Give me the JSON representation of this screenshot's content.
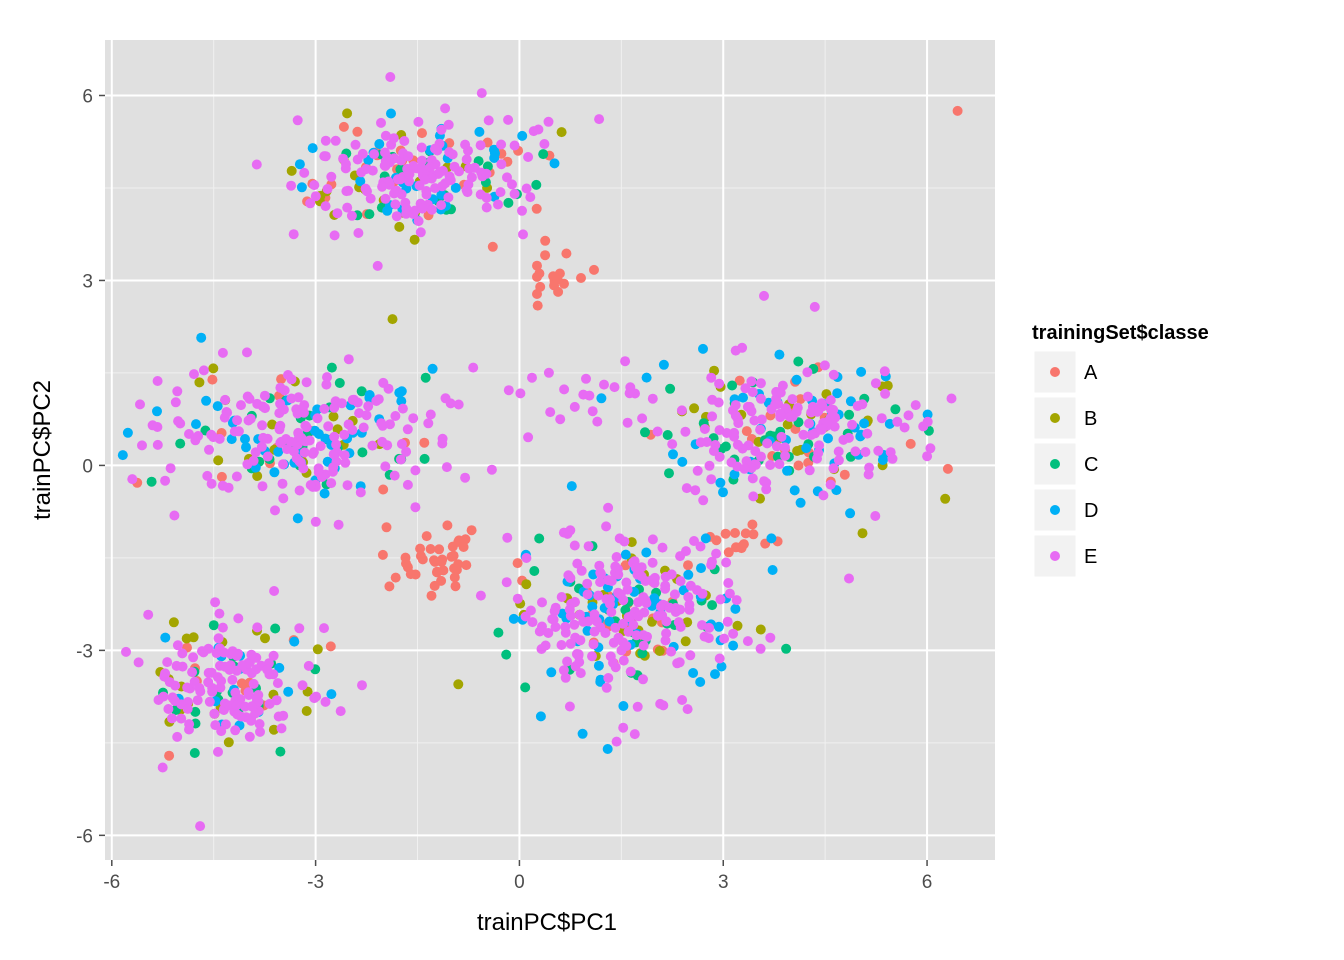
{
  "chart_data": {
    "type": "scatter",
    "xlabel": "trainPC$PC1",
    "ylabel": "trainPC$PC2",
    "xlim": [
      -6.1,
      7.0
    ],
    "ylim": [
      -6.4,
      6.9
    ],
    "x_ticks": [
      -6,
      -3,
      0,
      3,
      6
    ],
    "y_ticks": [
      -6,
      -3,
      3,
      6
    ],
    "x_tick_labels": [
      "-6",
      "-3",
      "0",
      "3",
      "6"
    ],
    "y_tick_labels": [
      "-6",
      "-3",
      "3",
      "6"
    ],
    "y_zero_label": "0",
    "grid": true,
    "legend_title": "trainingSet$classe",
    "legend_position": "right",
    "background_color": "#e0e0e0",
    "series": [
      {
        "name": "A",
        "color": "#f8766d"
      },
      {
        "name": "B",
        "color": "#a3a500"
      },
      {
        "name": "C",
        "color": "#00bf7d"
      },
      {
        "name": "D",
        "color": "#00b0f6"
      },
      {
        "name": "E",
        "color": "#e76bf3"
      }
    ],
    "clusters": [
      {
        "center": [
          -1.5,
          4.7
        ],
        "spread": [
          0.95,
          0.45
        ],
        "n": 260,
        "weights": [
          0.12,
          0.08,
          0.08,
          0.12,
          0.6
        ]
      },
      {
        "center": [
          -3.2,
          0.5
        ],
        "spread": [
          1.0,
          0.55
        ],
        "n": 280,
        "weights": [
          0.04,
          0.08,
          0.08,
          0.15,
          0.65
        ]
      },
      {
        "center": [
          -4.2,
          -3.6
        ],
        "spread": [
          0.6,
          0.55
        ],
        "n": 200,
        "weights": [
          0.06,
          0.1,
          0.1,
          0.08,
          0.66
        ]
      },
      {
        "center": [
          1.6,
          -2.4
        ],
        "spread": [
          0.85,
          0.7
        ],
        "n": 340,
        "weights": [
          0.06,
          0.1,
          0.06,
          0.2,
          0.58
        ]
      },
      {
        "center": [
          4.0,
          0.6
        ],
        "spread": [
          0.95,
          0.55
        ],
        "n": 280,
        "weights": [
          0.07,
          0.1,
          0.1,
          0.2,
          0.53
        ]
      },
      {
        "center": [
          -1.3,
          -1.5
        ],
        "spread": [
          0.35,
          0.3
        ],
        "n": 40,
        "weights": [
          1,
          0,
          0,
          0,
          0
        ]
      },
      {
        "center": [
          0.5,
          3.0
        ],
        "spread": [
          0.25,
          0.25
        ],
        "n": 18,
        "weights": [
          1,
          0,
          0,
          0,
          0
        ]
      },
      {
        "center": [
          3.4,
          -1.2
        ],
        "spread": [
          0.25,
          0.15
        ],
        "n": 14,
        "weights": [
          1,
          0,
          0,
          0,
          0
        ]
      },
      {
        "center": [
          1.0,
          1.1
        ],
        "spread": [
          0.5,
          0.35
        ],
        "n": 20,
        "weights": [
          0,
          0,
          0,
          0,
          1
        ]
      }
    ],
    "outliers": [
      {
        "x": 6.45,
        "y": 5.75,
        "series": "A"
      },
      {
        "x": -0.9,
        "y": -3.55,
        "series": "B"
      },
      {
        "x": 0.35,
        "y": 5.05,
        "series": "C"
      },
      {
        "x": -4.7,
        "y": -5.85,
        "series": "E"
      },
      {
        "x": -5.25,
        "y": -4.9,
        "series": "E"
      },
      {
        "x": -5.4,
        "y": 0.65,
        "series": "E"
      },
      {
        "x": -1.9,
        "y": 6.3,
        "series": "E"
      },
      {
        "x": 3.6,
        "y": 2.75,
        "series": "E"
      },
      {
        "x": 0.6,
        "y": 0.75,
        "series": "E"
      },
      {
        "x": 6.0,
        "y": 0.15,
        "series": "E"
      },
      {
        "x": -0.8,
        "y": -0.2,
        "series": "E"
      },
      {
        "x": 1.3,
        "y": -4.6,
        "series": "D"
      }
    ]
  }
}
